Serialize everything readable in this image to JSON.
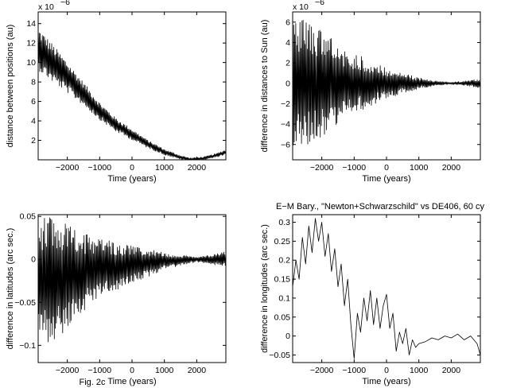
{
  "figure_caption": "Fig. 2c",
  "chart_data": [
    {
      "type": "line",
      "title": "",
      "xlabel": "Time (years)",
      "ylabel": "distance between positions (au)",
      "exponent_label": "x 10",
      "exponent_power": "−6",
      "xlim": [
        -2900,
        2900
      ],
      "ylim": [
        0,
        15.2
      ],
      "xticks": [
        -2000,
        -1000,
        0,
        1000,
        2000
      ],
      "xtick_labels": [
        "−2000",
        "−1000",
        "0",
        "1000",
        "2000"
      ],
      "yticks": [
        2,
        4,
        6,
        8,
        10,
        12,
        14
      ],
      "ytick_labels": [
        "2",
        "4",
        "6",
        "8",
        "10",
        "12",
        "14"
      ],
      "series": [
        {
          "x": [
            -2900,
            -2500,
            -2000,
            -1500,
            -1000,
            -500,
            0,
            500,
            1000,
            1500,
            1800,
            2200,
            2600,
            2900
          ],
          "envelope_center": [
            11.4,
            10.1,
            8.5,
            6.8,
            5.0,
            3.6,
            2.6,
            1.6,
            0.8,
            0.25,
            0.05,
            0.15,
            0.45,
            0.8
          ],
          "envelope_amplitude": [
            2.2,
            2.0,
            1.6,
            1.2,
            0.9,
            0.7,
            0.55,
            0.4,
            0.3,
            0.2,
            0.15,
            0.15,
            0.2,
            0.25
          ]
        }
      ]
    },
    {
      "type": "line",
      "title": "",
      "xlabel": "Time (years)",
      "ylabel": "difference in distances to Sun (au)",
      "exponent_label": "x 10",
      "exponent_power": "−6",
      "xlim": [
        -2900,
        2900
      ],
      "ylim": [
        -7.5,
        7
      ],
      "xticks": [
        -2000,
        -1000,
        0,
        1000,
        2000
      ],
      "xtick_labels": [
        "−2000",
        "−1000",
        "0",
        "1000",
        "2000"
      ],
      "yticks": [
        -6,
        -4,
        -2,
        0,
        2,
        4,
        6
      ],
      "ytick_labels": [
        "−6",
        "−4",
        "−2",
        "0",
        "2",
        "4",
        "6"
      ],
      "series": [
        {
          "x": [
            -2900,
            -2500,
            -2000,
            -1500,
            -1000,
            -500,
            0,
            500,
            1000,
            1500,
            2000,
            2500,
            2900
          ],
          "envelope_center": [
            0,
            0,
            0,
            0,
            0,
            0,
            0,
            0,
            0,
            0,
            0,
            0,
            0
          ],
          "envelope_amplitude": [
            6.8,
            6.3,
            5.2,
            4.0,
            3.0,
            2.2,
            1.5,
            1.0,
            0.55,
            0.25,
            0.1,
            0.25,
            0.45
          ]
        }
      ]
    },
    {
      "type": "line",
      "title": "",
      "xlabel": "Time (years)",
      "ylabel": "difference in latitudes (arc sec.)",
      "xlim": [
        -2900,
        2900
      ],
      "ylim": [
        -0.12,
        0.052
      ],
      "xticks": [
        -2000,
        -1000,
        0,
        1000,
        2000
      ],
      "xtick_labels": [
        "−2000",
        "−1000",
        "0",
        "1000",
        "2000"
      ],
      "yticks": [
        -0.1,
        -0.05,
        0,
        0.05
      ],
      "ytick_labels": [
        "−0.1",
        "−0.05",
        "0",
        "0.05"
      ],
      "series": [
        {
          "x": [
            -2900,
            -2500,
            -2000,
            -1500,
            -1000,
            -500,
            0,
            500,
            1000,
            1500,
            2000,
            2500,
            2900
          ],
          "envelope_center": [
            -0.02,
            -0.025,
            -0.02,
            -0.015,
            -0.01,
            -0.008,
            -0.006,
            -0.004,
            -0.002,
            -0.001,
            0,
            0,
            0
          ],
          "envelope_amplitude": [
            0.07,
            0.075,
            0.06,
            0.045,
            0.035,
            0.028,
            0.022,
            0.016,
            0.01,
            0.006,
            0.003,
            0.006,
            0.009
          ]
        }
      ]
    },
    {
      "type": "line",
      "title": "E−M Bary., \"Newton+Schwarzschild\" vs DE406, 60 cy",
      "xlabel": "Time (years)",
      "ylabel": "difference in longitudes (arc sec.)",
      "xlim": [
        -2900,
        2900
      ],
      "ylim": [
        -0.07,
        0.32
      ],
      "xticks": [
        -2000,
        -1000,
        0,
        1000,
        2000
      ],
      "xtick_labels": [
        "−2000",
        "−1000",
        "0",
        "1000",
        "2000"
      ],
      "yticks": [
        -0.05,
        0,
        0.05,
        0.1,
        0.15,
        0.2,
        0.25,
        0.3
      ],
      "ytick_labels": [
        "−0.05",
        "0",
        "0.05",
        "0.1",
        "0.15",
        "0.2",
        "0.25",
        "0.3"
      ],
      "series": [
        {
          "x": [
            -2900,
            -2800,
            -2700,
            -2600,
            -2500,
            -2400,
            -2300,
            -2200,
            -2100,
            -2000,
            -1900,
            -1800,
            -1700,
            -1600,
            -1500,
            -1400,
            -1300,
            -1200,
            -1100,
            -1000,
            -900,
            -800,
            -700,
            -600,
            -500,
            -400,
            -300,
            -200,
            -100,
            0,
            100,
            200,
            300,
            400,
            500,
            600,
            700,
            800,
            900,
            1000,
            1200,
            1400,
            1600,
            1800,
            2000,
            2200,
            2400,
            2600,
            2800,
            2900
          ],
          "y": [
            0.13,
            0.2,
            0.15,
            0.26,
            0.19,
            0.29,
            0.22,
            0.31,
            0.25,
            0.3,
            0.21,
            0.27,
            0.17,
            0.23,
            0.13,
            0.19,
            0.08,
            0.15,
            0.03,
            -0.06,
            0.06,
            0.01,
            0.1,
            0.04,
            0.12,
            0.03,
            0.1,
            0.02,
            0.08,
            0.11,
            0.02,
            0.06,
            -0.04,
            0.01,
            -0.02,
            0.02,
            -0.05,
            -0.01,
            -0.03,
            -0.02,
            -0.015,
            -0.005,
            -0.01,
            0.0,
            -0.005,
            0.005,
            -0.01,
            0.0,
            -0.02,
            -0.05
          ]
        }
      ]
    }
  ]
}
